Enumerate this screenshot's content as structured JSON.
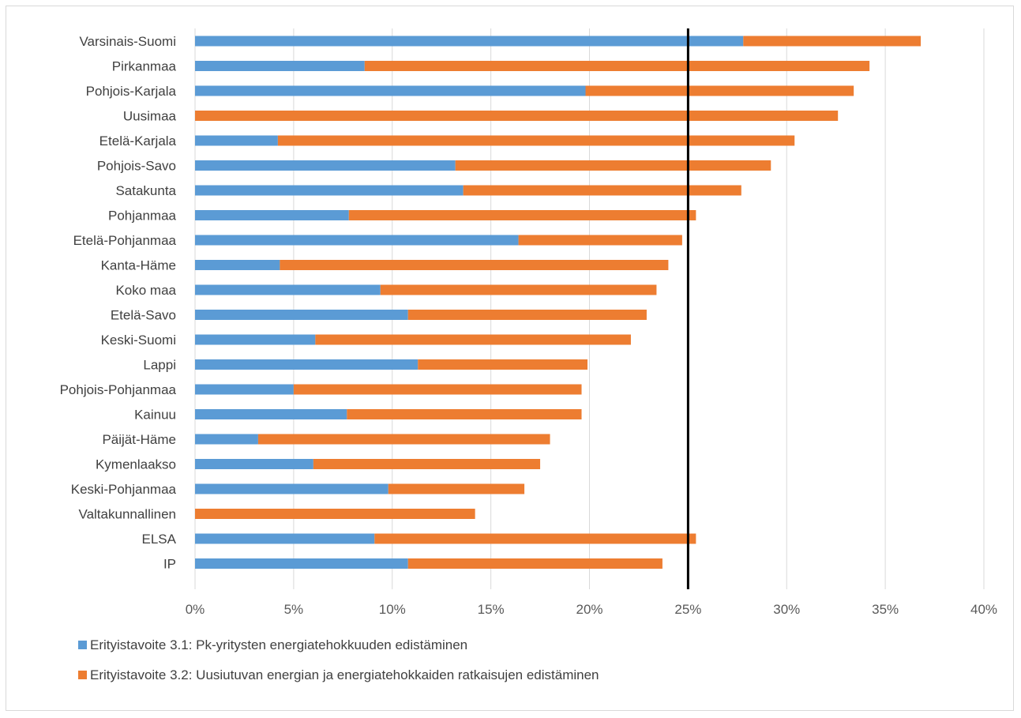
{
  "chart_data": {
    "type": "bar",
    "orientation": "horizontal",
    "stacked": true,
    "title": "",
    "xlabel": "",
    "ylabel": "",
    "xlim": [
      0,
      40
    ],
    "x_ticks": [
      "0%",
      "5%",
      "10%",
      "15%",
      "20%",
      "25%",
      "30%",
      "35%",
      "40%"
    ],
    "x_tick_values": [
      0,
      5,
      10,
      15,
      20,
      25,
      30,
      35,
      40
    ],
    "grid": "vertical",
    "legend": "bottom-left",
    "reference_line": {
      "value": 25,
      "color": "#000000"
    },
    "categories": [
      "Varsinais-Suomi",
      "Pirkanmaa",
      "Pohjois-Karjala",
      "Uusimaa",
      "Etelä-Karjala",
      "Pohjois-Savo",
      "Satakunta",
      "Pohjanmaa",
      "Etelä-Pohjanmaa",
      "Kanta-Häme",
      "Koko maa",
      "Etelä-Savo",
      "Keski-Suomi",
      "Lappi",
      "Pohjois-Pohjanmaa",
      "Kainuu",
      "Päijät-Häme",
      "Kymenlaakso",
      "Keski-Pohjanmaa",
      "Valtakunnallinen",
      "ELSA",
      "IP"
    ],
    "series": [
      {
        "name": "Erityistavoite 3.1: Pk-yritysten energiatehokkuuden edistäminen",
        "color": "#5b9bd5",
        "values": [
          27.8,
          8.6,
          19.8,
          0,
          4.2,
          13.2,
          13.6,
          7.8,
          16.4,
          4.3,
          9.4,
          10.8,
          6.1,
          11.3,
          5.0,
          7.7,
          3.2,
          6.0,
          9.8,
          0,
          9.1,
          10.8
        ]
      },
      {
        "name": "Erityistavoite 3.2: Uusiutuvan energian ja energiatehokkaiden ratkaisujen edistäminen",
        "color": "#ed7d31",
        "values": [
          9.0,
          25.6,
          13.6,
          32.6,
          26.2,
          16.0,
          14.1,
          17.6,
          8.3,
          19.7,
          14.0,
          12.1,
          16.0,
          8.6,
          14.6,
          11.9,
          14.8,
          11.5,
          6.9,
          14.2,
          16.3,
          12.9
        ]
      }
    ]
  }
}
